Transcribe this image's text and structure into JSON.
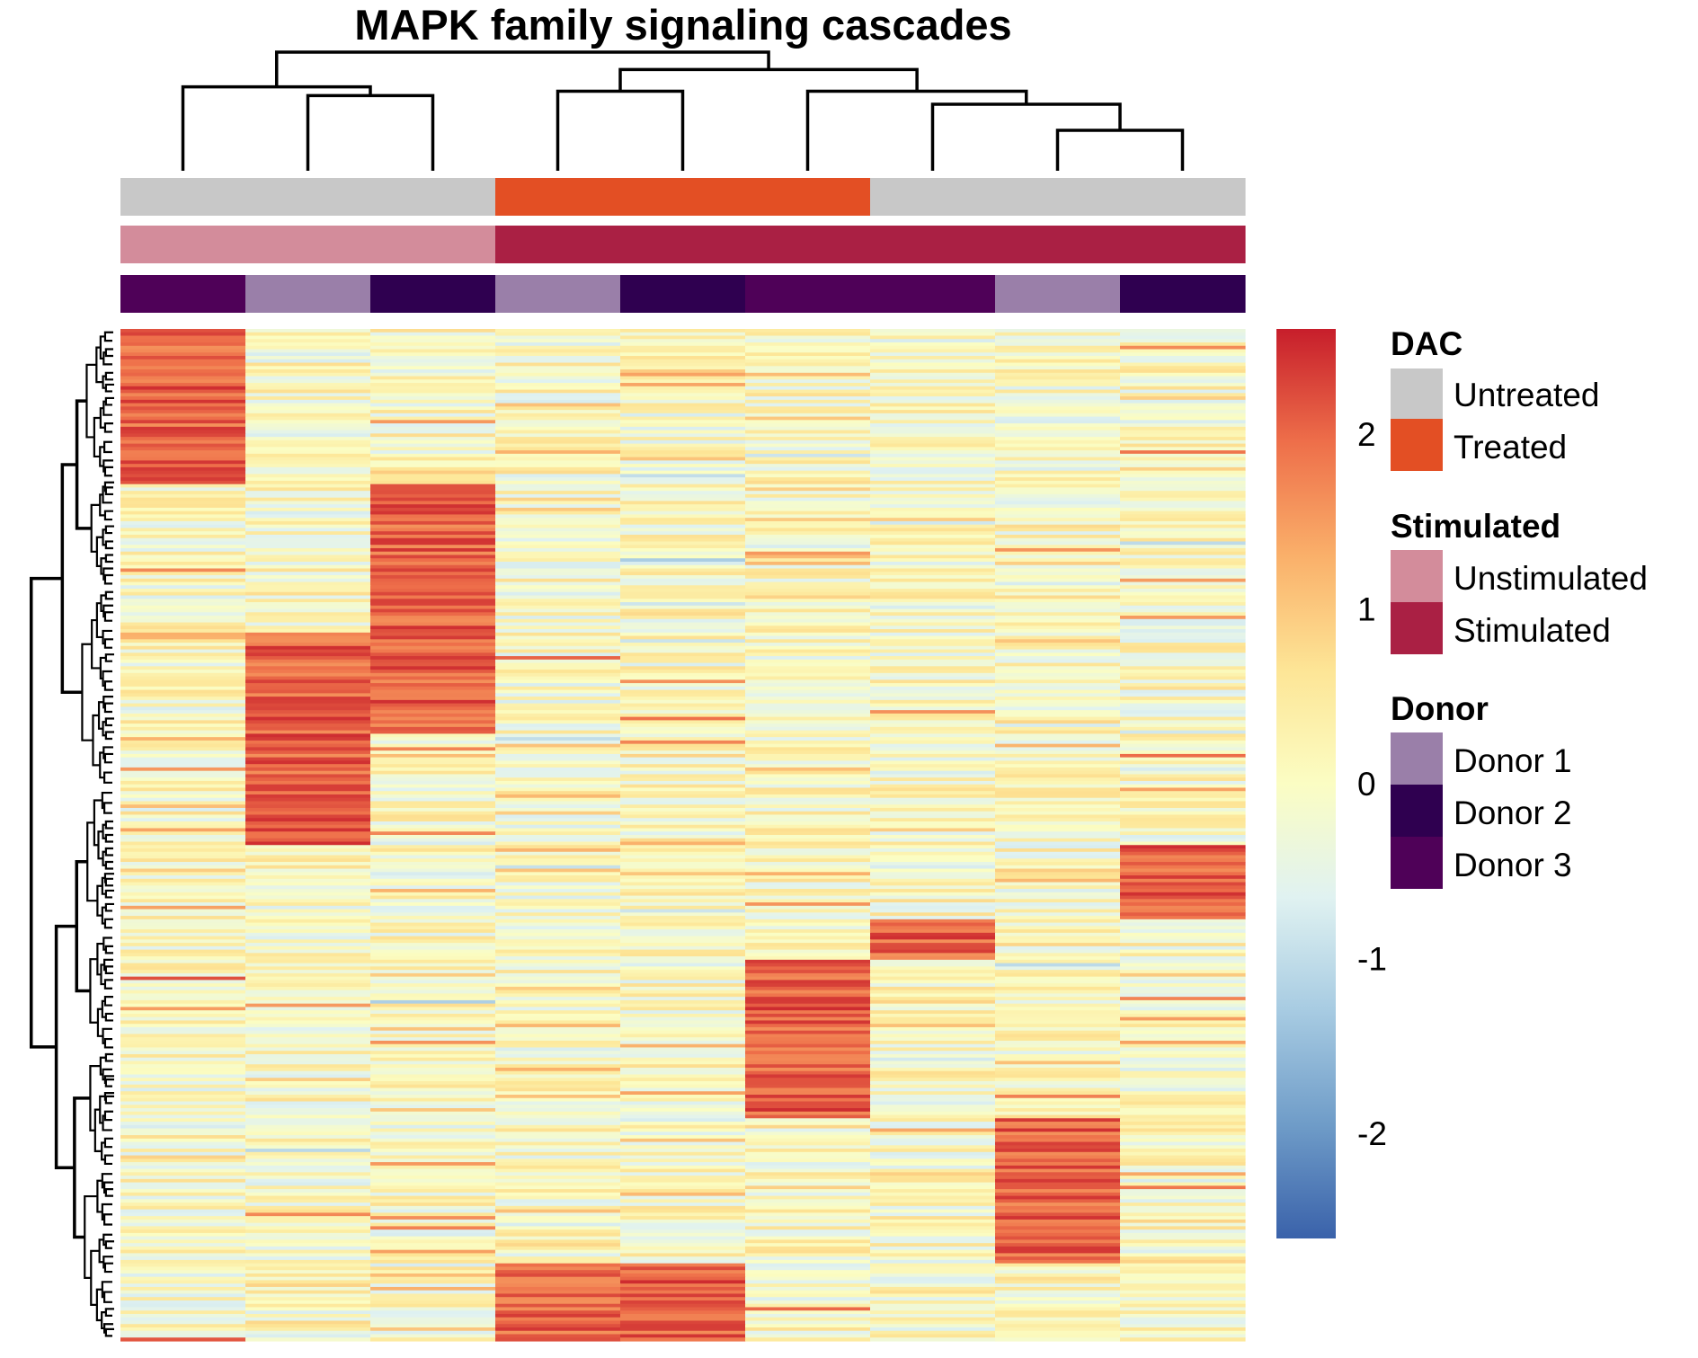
{
  "chart_data": {
    "type": "heatmap",
    "title": "MAPK family signaling cascades",
    "n_columns": 9,
    "n_rows": 300,
    "column_annotations": [
      {
        "name": "DAC",
        "values": [
          "Untreated",
          "Untreated",
          "Untreated",
          "Treated",
          "Treated",
          "Treated",
          "Untreated",
          "Untreated",
          "Untreated"
        ],
        "levels": [
          {
            "label": "Untreated",
            "color": "#C8C8C8"
          },
          {
            "label": "Treated",
            "color": "#E34F24"
          }
        ]
      },
      {
        "name": "Stimulated",
        "values": [
          "Unstimulated",
          "Unstimulated",
          "Unstimulated",
          "Stimulated",
          "Stimulated",
          "Stimulated",
          "Stimulated",
          "Stimulated",
          "Stimulated"
        ],
        "levels": [
          {
            "label": "Unstimulated",
            "color": "#D38C9B"
          },
          {
            "label": "Stimulated",
            "color": "#AA2044"
          }
        ]
      },
      {
        "name": "Donor",
        "values": [
          "Donor 3",
          "Donor 1",
          "Donor 2",
          "Donor 1",
          "Donor 2",
          "Donor 3",
          "Donor 3",
          "Donor 1",
          "Donor 2"
        ],
        "levels": [
          {
            "label": "Donor 1",
            "color": "#9A7FA9"
          },
          {
            "label": "Donor 2",
            "color": "#2F0050"
          },
          {
            "label": "Donor 3",
            "color": "#4F0158"
          }
        ]
      }
    ],
    "column_dendrogram": {
      "merges": [
        [
          8,
          9
        ],
        [
          7,
          "A"
        ],
        [
          2,
          3
        ],
        [
          6,
          "B"
        ],
        [
          4,
          5
        ],
        [
          1,
          "C"
        ],
        [
          "E",
          "D"
        ],
        [
          "F",
          "G"
        ]
      ],
      "heights": [
        1,
        1.6,
        1.8,
        1.9,
        1.9,
        2.0,
        2.4,
        2.8
      ]
    },
    "color_scale": {
      "min": -2.6,
      "max": 2.6,
      "colors": [
        "#3A62AA",
        "#6F9CC8",
        "#A7CBE2",
        "#E0F2F1",
        "#FBFDC3",
        "#FDE596",
        "#FAB06A",
        "#EE6F4A",
        "#C71E2B"
      ],
      "ticks": [
        -2,
        -1,
        0,
        1,
        2
      ]
    },
    "row_clusters": [
      {
        "start_frac": 0.0,
        "end_frac": 0.155,
        "high_columns": [
          1
        ]
      },
      {
        "start_frac": 0.155,
        "end_frac": 0.3,
        "high_columns": [
          3
        ]
      },
      {
        "start_frac": 0.3,
        "end_frac": 0.4,
        "high_columns": [
          3,
          2
        ]
      },
      {
        "start_frac": 0.4,
        "end_frac": 0.51,
        "high_columns": [
          2
        ]
      },
      {
        "start_frac": 0.51,
        "end_frac": 0.585,
        "high_columns": [
          9
        ]
      },
      {
        "start_frac": 0.585,
        "end_frac": 0.625,
        "high_columns": [
          7
        ]
      },
      {
        "start_frac": 0.625,
        "end_frac": 0.78,
        "high_columns": [
          6
        ]
      },
      {
        "start_frac": 0.78,
        "end_frac": 0.925,
        "high_columns": [
          8
        ]
      },
      {
        "start_frac": 0.925,
        "end_frac": 1.0,
        "high_columns": [
          4,
          5
        ]
      }
    ]
  },
  "legend": {
    "dac_title": "DAC",
    "dac_items": [
      "Untreated",
      "Treated"
    ],
    "stim_title": "Stimulated",
    "stim_items": [
      "Unstimulated",
      "Stimulated"
    ],
    "donor_title": "Donor",
    "donor_items": [
      "Donor 1",
      "Donor 2",
      "Donor 3"
    ]
  }
}
